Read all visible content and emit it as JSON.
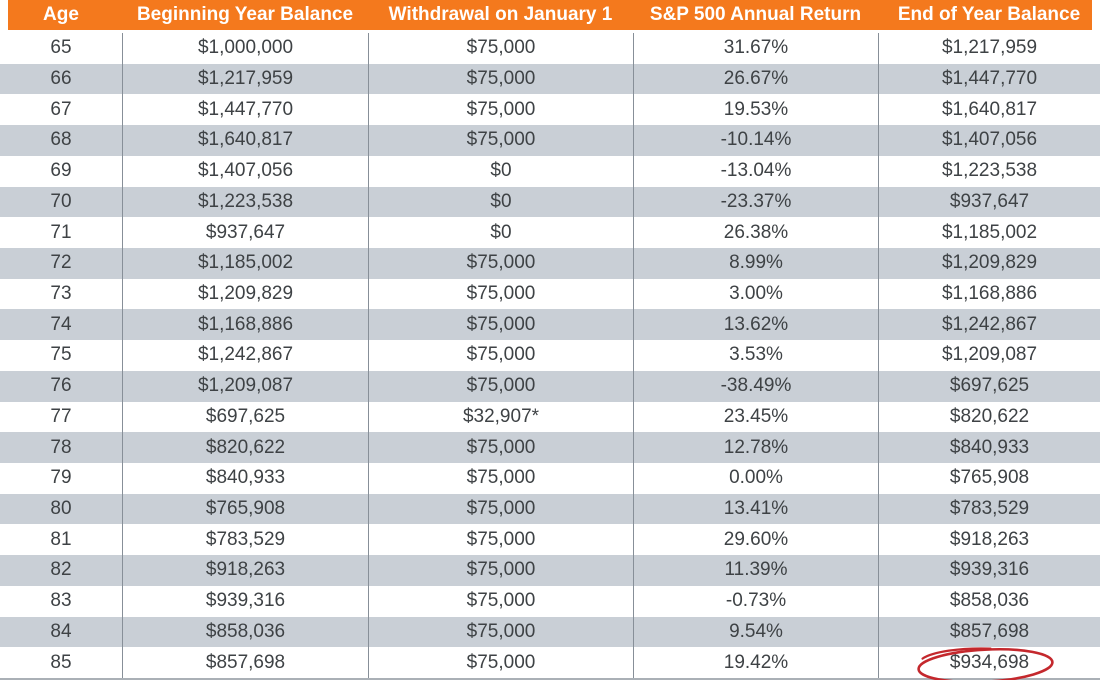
{
  "colors": {
    "header_bg": "#F4791D",
    "header_text": "#FFFFFF",
    "stripe_bg": "#C9CFD6",
    "row_bg": "#FFFFFF",
    "cell_text": "#3E4245",
    "column_divider": "#878F98",
    "annotation_red": "#C4282D"
  },
  "table": {
    "columns": [
      {
        "key": "age",
        "label": "Age"
      },
      {
        "key": "beginning_balance",
        "label": "Beginning Year Balance"
      },
      {
        "key": "withdrawal",
        "label": "Withdrawal on January 1"
      },
      {
        "key": "annual_return",
        "label": "S&P 500 Annual Return"
      },
      {
        "key": "end_balance",
        "label": "End of Year Balance"
      }
    ],
    "rows": [
      {
        "age": "65",
        "beginning_balance": "$1,000,000",
        "withdrawal": "$75,000",
        "annual_return": "31.67%",
        "end_balance": "$1,217,959"
      },
      {
        "age": "66",
        "beginning_balance": "$1,217,959",
        "withdrawal": "$75,000",
        "annual_return": "26.67%",
        "end_balance": "$1,447,770"
      },
      {
        "age": "67",
        "beginning_balance": "$1,447,770",
        "withdrawal": "$75,000",
        "annual_return": "19.53%",
        "end_balance": "$1,640,817"
      },
      {
        "age": "68",
        "beginning_balance": "$1,640,817",
        "withdrawal": "$75,000",
        "annual_return": "-10.14%",
        "end_balance": "$1,407,056"
      },
      {
        "age": "69",
        "beginning_balance": "$1,407,056",
        "withdrawal": "$0",
        "annual_return": "-13.04%",
        "end_balance": "$1,223,538"
      },
      {
        "age": "70",
        "beginning_balance": "$1,223,538",
        "withdrawal": "$0",
        "annual_return": "-23.37%",
        "end_balance": "$937,647"
      },
      {
        "age": "71",
        "beginning_balance": "$937,647",
        "withdrawal": "$0",
        "annual_return": "26.38%",
        "end_balance": "$1,185,002"
      },
      {
        "age": "72",
        "beginning_balance": "$1,185,002",
        "withdrawal": "$75,000",
        "annual_return": "8.99%",
        "end_balance": "$1,209,829"
      },
      {
        "age": "73",
        "beginning_balance": "$1,209,829",
        "withdrawal": "$75,000",
        "annual_return": "3.00%",
        "end_balance": "$1,168,886"
      },
      {
        "age": "74",
        "beginning_balance": "$1,168,886",
        "withdrawal": "$75,000",
        "annual_return": "13.62%",
        "end_balance": "$1,242,867"
      },
      {
        "age": "75",
        "beginning_balance": "$1,242,867",
        "withdrawal": "$75,000",
        "annual_return": "3.53%",
        "end_balance": "$1,209,087"
      },
      {
        "age": "76",
        "beginning_balance": "$1,209,087",
        "withdrawal": "$75,000",
        "annual_return": "-38.49%",
        "end_balance": "$697,625"
      },
      {
        "age": "77",
        "beginning_balance": "$697,625",
        "withdrawal": "$32,907*",
        "annual_return": "23.45%",
        "end_balance": "$820,622"
      },
      {
        "age": "78",
        "beginning_balance": "$820,622",
        "withdrawal": "$75,000",
        "annual_return": "12.78%",
        "end_balance": "$840,933"
      },
      {
        "age": "79",
        "beginning_balance": "$840,933",
        "withdrawal": "$75,000",
        "annual_return": "0.00%",
        "end_balance": "$765,908"
      },
      {
        "age": "80",
        "beginning_balance": "$765,908",
        "withdrawal": "$75,000",
        "annual_return": "13.41%",
        "end_balance": "$783,529"
      },
      {
        "age": "81",
        "beginning_balance": "$783,529",
        "withdrawal": "$75,000",
        "annual_return": "29.60%",
        "end_balance": "$918,263"
      },
      {
        "age": "82",
        "beginning_balance": "$918,263",
        "withdrawal": "$75,000",
        "annual_return": "11.39%",
        "end_balance": "$939,316"
      },
      {
        "age": "83",
        "beginning_balance": "$939,316",
        "withdrawal": "$75,000",
        "annual_return": "-0.73%",
        "end_balance": "$858,036"
      },
      {
        "age": "84",
        "beginning_balance": "$858,036",
        "withdrawal": "$75,000",
        "annual_return": "9.54%",
        "end_balance": "$857,698"
      },
      {
        "age": "85",
        "beginning_balance": "$857,698",
        "withdrawal": "$75,000",
        "annual_return": "19.42%",
        "end_balance": "$934,698"
      }
    ],
    "highlight": {
      "row_age": "85",
      "column_key": "end_balance",
      "annotation": "hand-drawn-red-ellipse"
    }
  }
}
